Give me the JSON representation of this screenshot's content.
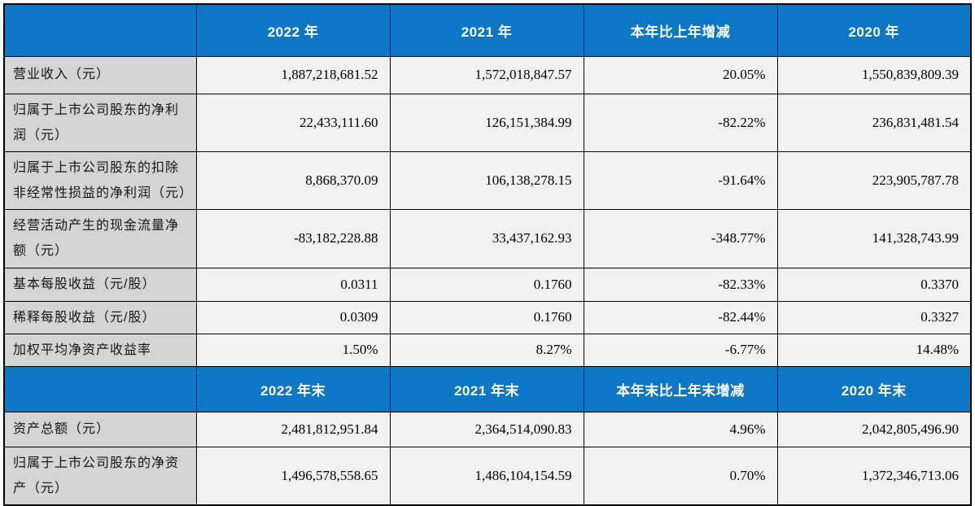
{
  "colors": {
    "header_bg": "#0C77C5",
    "header_text": "#FFFFFF",
    "label_bg": "#D4D4D4",
    "cell_bg": "#F1F1F1",
    "border": "#000000"
  },
  "sections": [
    {
      "header": {
        "corner": "",
        "cols": [
          "2022 年",
          "2021 年",
          "本年比上年增减",
          "2020 年"
        ]
      },
      "rows": [
        {
          "label": "营业收入（元）",
          "values": [
            "1,887,218,681.52",
            "1,572,018,847.57",
            "20.05%",
            "1,550,839,809.39"
          ]
        },
        {
          "label": "归属于上市公司股东的净利润（元）",
          "values": [
            "22,433,111.60",
            "126,151,384.99",
            "-82.22%",
            "236,831,481.54"
          ]
        },
        {
          "label": "归属于上市公司股东的扣除非经常性损益的净利润（元）",
          "values": [
            "8,868,370.09",
            "106,138,278.15",
            "-91.64%",
            "223,905,787.78"
          ]
        },
        {
          "label": "经营活动产生的现金流量净额（元）",
          "values": [
            "-83,182,228.88",
            "33,437,162.93",
            "-348.77%",
            "141,328,743.99"
          ]
        },
        {
          "label": "基本每股收益（元/股）",
          "values": [
            "0.0311",
            "0.1760",
            "-82.33%",
            "0.3370"
          ]
        },
        {
          "label": "稀释每股收益（元/股）",
          "values": [
            "0.0309",
            "0.1760",
            "-82.44%",
            "0.3327"
          ]
        },
        {
          "label": "加权平均净资产收益率",
          "values": [
            "1.50%",
            "8.27%",
            "-6.77%",
            "14.48%"
          ]
        }
      ]
    },
    {
      "header": {
        "corner": "",
        "cols": [
          "2022 年末",
          "2021 年末",
          "本年末比上年末增减",
          "2020 年末"
        ]
      },
      "rows": [
        {
          "label": "资产总额（元）",
          "values": [
            "2,481,812,951.84",
            "2,364,514,090.83",
            "4.96%",
            "2,042,805,496.90"
          ]
        },
        {
          "label": "归属于上市公司股东的净资产（元）",
          "values": [
            "1,496,578,558.65",
            "1,486,104,154.59",
            "0.70%",
            "1,372,346,713.06"
          ]
        }
      ]
    }
  ]
}
